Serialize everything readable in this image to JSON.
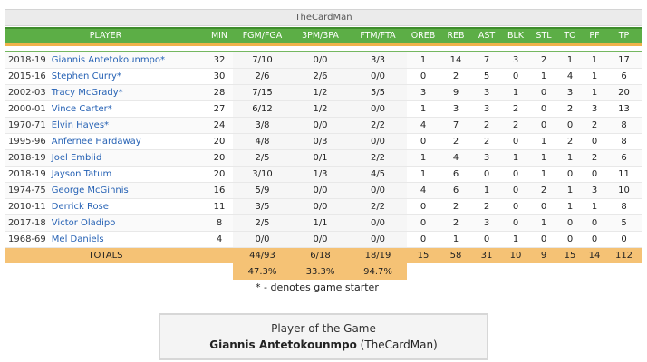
{
  "title": "TheCardMan",
  "columns": [
    "PLAYER",
    "MIN",
    "FGM/FGA",
    "3PM/3PA",
    "FTM/FTA",
    "OREB",
    "REB",
    "AST",
    "BLK",
    "STL",
    "TO",
    "PF",
    "TP"
  ],
  "players": [
    {
      "year": "2018-19",
      "name": "Giannis Antetokounmpo*",
      "stats": [
        "32",
        "7/10",
        "0/0",
        "3/3",
        "1",
        "14",
        "7",
        "3",
        "2",
        "1",
        "1",
        "17"
      ]
    },
    {
      "year": "2015-16",
      "name": "Stephen Curry*",
      "stats": [
        "30",
        "2/6",
        "2/6",
        "0/0",
        "0",
        "2",
        "5",
        "0",
        "1",
        "4",
        "1",
        "6"
      ]
    },
    {
      "year": "2002-03",
      "name": "Tracy McGrady*",
      "stats": [
        "28",
        "7/15",
        "1/2",
        "5/5",
        "3",
        "9",
        "3",
        "1",
        "0",
        "3",
        "1",
        "20"
      ]
    },
    {
      "year": "2000-01",
      "name": "Vince Carter*",
      "stats": [
        "27",
        "6/12",
        "1/2",
        "0/0",
        "1",
        "3",
        "3",
        "2",
        "0",
        "2",
        "3",
        "13"
      ]
    },
    {
      "year": "1970-71",
      "name": "Elvin Hayes*",
      "stats": [
        "24",
        "3/8",
        "0/0",
        "2/2",
        "4",
        "7",
        "2",
        "2",
        "0",
        "0",
        "2",
        "8"
      ]
    },
    {
      "year": "1995-96",
      "name": "Anfernee Hardaway",
      "stats": [
        "20",
        "4/8",
        "0/3",
        "0/0",
        "0",
        "2",
        "2",
        "0",
        "1",
        "2",
        "0",
        "8"
      ]
    },
    {
      "year": "2018-19",
      "name": "Joel Embiid",
      "stats": [
        "20",
        "2/5",
        "0/1",
        "2/2",
        "1",
        "4",
        "3",
        "1",
        "1",
        "1",
        "2",
        "6"
      ]
    },
    {
      "year": "2018-19",
      "name": "Jayson Tatum",
      "stats": [
        "20",
        "3/10",
        "1/3",
        "4/5",
        "1",
        "6",
        "0",
        "0",
        "1",
        "0",
        "0",
        "11"
      ]
    },
    {
      "year": "1974-75",
      "name": "George McGinnis",
      "stats": [
        "16",
        "5/9",
        "0/0",
        "0/0",
        "4",
        "6",
        "1",
        "0",
        "2",
        "1",
        "3",
        "10"
      ]
    },
    {
      "year": "2010-11",
      "name": "Derrick Rose",
      "stats": [
        "11",
        "3/5",
        "0/0",
        "2/2",
        "0",
        "2",
        "2",
        "0",
        "0",
        "1",
        "1",
        "8"
      ]
    },
    {
      "year": "2017-18",
      "name": "Victor Oladipo",
      "stats": [
        "8",
        "2/5",
        "1/1",
        "0/0",
        "0",
        "2",
        "3",
        "0",
        "1",
        "0",
        "0",
        "5"
      ]
    },
    {
      "year": "1968-69",
      "name": "Mel Daniels",
      "stats": [
        "4",
        "0/0",
        "0/0",
        "0/0",
        "0",
        "1",
        "0",
        "1",
        "0",
        "0",
        "0",
        "0"
      ]
    }
  ],
  "totals": {
    "label": "TOTALS",
    "stats": [
      "",
      "44/93",
      "6/18",
      "18/19",
      "15",
      "58",
      "31",
      "10",
      "9",
      "15",
      "14",
      "112"
    ],
    "percentages": [
      "47.3%",
      "33.3%",
      "94.7%"
    ]
  },
  "starter_note": "* - denotes game starter",
  "player_of_game": {
    "heading": "Player of the Game",
    "name": "Giannis Antetokounmpo",
    "team": "(TheCardMan)"
  },
  "colors": {
    "header_green": "#5cae46",
    "totals_orange": "#f5c275",
    "link_blue": "#2561b4"
  }
}
